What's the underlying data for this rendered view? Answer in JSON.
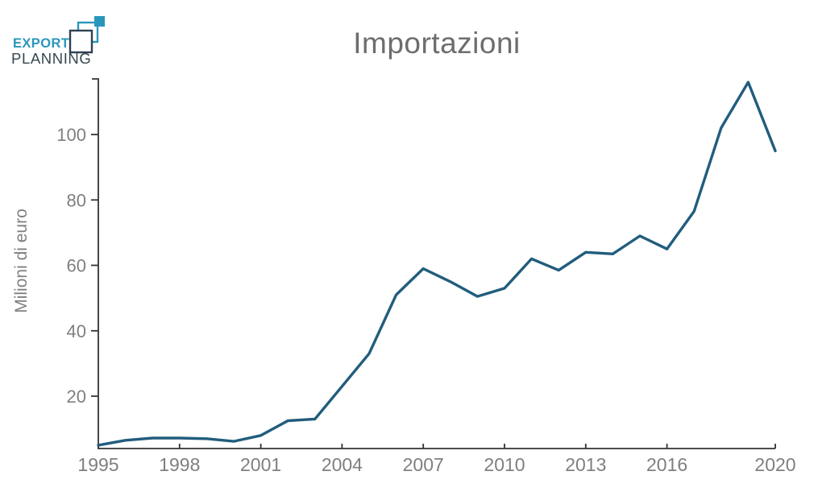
{
  "logo": {
    "line1": "EXPORT",
    "line2": "PLANNING",
    "teal": "#2a96bc",
    "navy": "#2e4154"
  },
  "chart_data": {
    "type": "line",
    "title": "Importazioni",
    "xlabel": "",
    "ylabel": "Milioni di euro",
    "x": [
      1995,
      1996,
      1997,
      1998,
      1999,
      2000,
      2001,
      2002,
      2003,
      2004,
      2005,
      2006,
      2007,
      2008,
      2009,
      2010,
      2011,
      2012,
      2013,
      2014,
      2015,
      2016,
      2017,
      2018,
      2019,
      2020
    ],
    "series": [
      {
        "name": "Importazioni",
        "values": [
          5,
          6.5,
          7.2,
          7.2,
          7,
          6.2,
          8,
          12.5,
          13,
          23,
          33,
          51,
          59,
          55,
          50.5,
          53,
          62,
          58.5,
          64,
          63.5,
          69,
          65,
          76.5,
          102,
          116,
          95
        ]
      }
    ],
    "x_ticks": [
      1995,
      1998,
      2001,
      2004,
      2007,
      2010,
      2013,
      2016,
      2020
    ],
    "y_ticks": [
      20,
      40,
      60,
      80,
      100
    ],
    "xlim": [
      1995,
      2020
    ],
    "ylim": [
      4,
      117
    ],
    "grid": false,
    "legend": "none",
    "line_color": "#215d7d",
    "axis_color": "#333333",
    "tick_label_color": "#7f7f7f",
    "title_color": "#6d6d6d"
  }
}
